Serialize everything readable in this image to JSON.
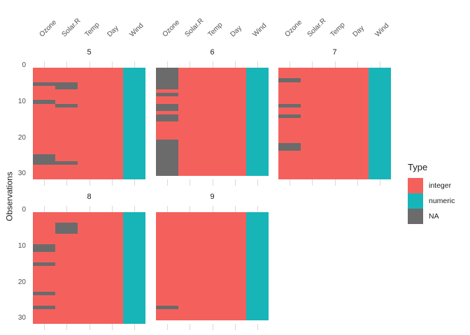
{
  "figure": {
    "background": "#ffffff"
  },
  "chart_data": {
    "type": "heatmap",
    "title": "",
    "xlabel": "",
    "ylabel": "Observations",
    "columns": [
      "Ozone",
      "Solar.R",
      "Temp",
      "Day",
      "Wind"
    ],
    "column_types": [
      "integer",
      "integer",
      "integer",
      "integer",
      "numeric"
    ],
    "y_ticks": [
      0,
      10,
      20,
      30
    ],
    "y_axis_reversed": true,
    "facets": [
      {
        "label": "5",
        "n_obs": 31,
        "na_rows": {
          "Ozone": [
            5,
            10,
            25,
            26,
            27
          ],
          "Solar.R": [
            5,
            6,
            11,
            27
          ]
        }
      },
      {
        "label": "6",
        "n_obs": 30,
        "na_rows": {
          "Ozone": [
            1,
            2,
            3,
            4,
            5,
            6,
            8,
            11,
            12,
            14,
            15,
            21,
            22,
            23,
            24,
            25,
            26,
            27,
            28,
            29,
            30
          ]
        }
      },
      {
        "label": "7",
        "n_obs": 31,
        "na_rows": {
          "Ozone": [
            4,
            11,
            14,
            22,
            23
          ]
        }
      },
      {
        "label": "8",
        "n_obs": 31,
        "na_rows": {
          "Ozone": [
            10,
            11,
            15,
            23,
            27
          ],
          "Solar.R": [
            4,
            5,
            6
          ]
        }
      },
      {
        "label": "9",
        "n_obs": 30,
        "na_rows": {
          "Ozone": [
            27
          ]
        }
      }
    ],
    "legend": {
      "title": "Type",
      "position": "right",
      "entries": [
        {
          "label": "integer",
          "color": "#F4615D"
        },
        {
          "label": "numeric",
          "color": "#18B5B8"
        },
        {
          "label": "NA",
          "color": "#6B6B6B"
        }
      ]
    },
    "colors": {
      "integer": "#F4615D",
      "numeric": "#18B5B8",
      "na": "#6B6B6B",
      "tick": "#d9d9d9",
      "axis_text": "#4d4d4d",
      "strip_text": "#1a1a1a"
    }
  }
}
